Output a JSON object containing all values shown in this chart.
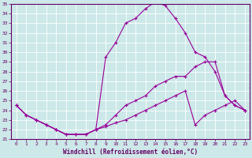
{
  "xlabel": "Windchill (Refroidissement éolien,°C)",
  "background_color": "#cce8e8",
  "grid_color": "#ffffff",
  "line_color": "#990099",
  "xlim": [
    -0.5,
    23.5
  ],
  "ylim": [
    21,
    35
  ],
  "x_ticks": [
    0,
    1,
    2,
    3,
    4,
    5,
    6,
    7,
    8,
    9,
    10,
    11,
    12,
    13,
    14,
    15,
    16,
    17,
    18,
    19,
    20,
    21,
    22,
    23
  ],
  "y_ticks": [
    21,
    22,
    23,
    24,
    25,
    26,
    27,
    28,
    29,
    30,
    31,
    32,
    33,
    34,
    35
  ],
  "line1_x": [
    0,
    1,
    2,
    3,
    4,
    5,
    6,
    7,
    8,
    9,
    10,
    11,
    12,
    13,
    14,
    15,
    16,
    17,
    18,
    19,
    20,
    21,
    22,
    23
  ],
  "line1_y": [
    24.5,
    23.5,
    23.0,
    22.5,
    22.0,
    21.5,
    21.5,
    21.5,
    22.0,
    29.5,
    31.0,
    33.0,
    33.5,
    34.5,
    35.2,
    34.8,
    33.5,
    32.0,
    30.0,
    29.5,
    28.0,
    25.5,
    24.5,
    24.0
  ],
  "line2_x": [
    0,
    1,
    2,
    3,
    4,
    5,
    6,
    7,
    8,
    9,
    10,
    11,
    12,
    13,
    14,
    15,
    16,
    17,
    18,
    19,
    20,
    21,
    22,
    23
  ],
  "line2_y": [
    24.5,
    23.5,
    23.0,
    22.5,
    22.0,
    21.5,
    21.5,
    21.5,
    22.0,
    22.5,
    23.5,
    24.5,
    25.0,
    25.5,
    26.5,
    27.0,
    27.5,
    27.5,
    28.5,
    29.0,
    29.0,
    25.5,
    24.5,
    24.0
  ],
  "line3_x": [
    0,
    1,
    2,
    3,
    4,
    5,
    6,
    7,
    8,
    9,
    10,
    11,
    12,
    13,
    14,
    15,
    16,
    17,
    18,
    19,
    20,
    21,
    22,
    23
  ],
  "line3_y": [
    24.5,
    23.5,
    23.0,
    22.5,
    22.0,
    21.5,
    21.5,
    21.5,
    22.0,
    22.3,
    22.7,
    23.0,
    23.5,
    24.0,
    24.5,
    25.0,
    25.5,
    26.0,
    22.5,
    23.5,
    24.0,
    24.5,
    25.0,
    24.0
  ]
}
